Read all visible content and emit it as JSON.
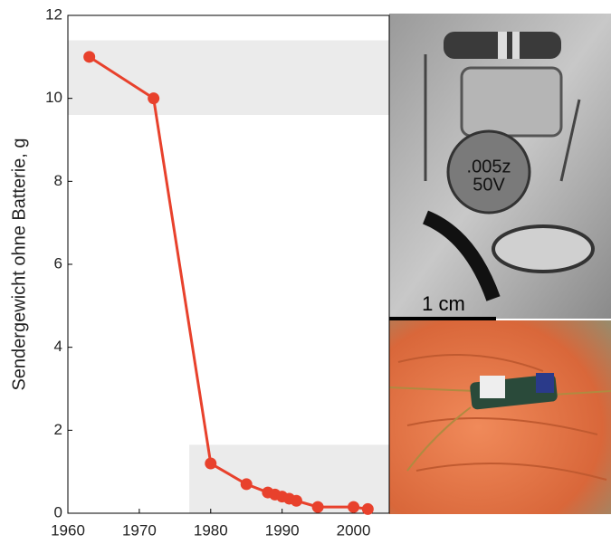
{
  "chart_data": {
    "type": "line",
    "ylabel": "Sendergewicht ohne Batterie, g",
    "x": [
      1963,
      1972,
      1980,
      1985,
      1988,
      1989,
      1990,
      1991,
      1992,
      1995,
      2000,
      2002
    ],
    "series": [
      {
        "color": "#e8412c",
        "values": [
          11.0,
          10.0,
          1.2,
          0.7,
          0.5,
          0.45,
          0.4,
          0.35,
          0.3,
          0.15,
          0.15,
          0.1
        ]
      }
    ],
    "xlim": [
      1960,
      2005
    ],
    "ylim": [
      0,
      12
    ],
    "xticks": [
      1960,
      1970,
      1980,
      1990,
      2000
    ],
    "yticks": [
      0,
      2,
      4,
      6,
      8,
      10,
      12
    ],
    "bands": [
      {
        "xlim": [
          1960,
          2005
        ],
        "ylim": [
          9.6,
          11.4
        ]
      },
      {
        "xlim": [
          1977,
          2005
        ],
        "ylim": [
          0,
          1.65
        ]
      }
    ],
    "band_color": "#ebebeb"
  },
  "scale_bar_label": "1 cm"
}
